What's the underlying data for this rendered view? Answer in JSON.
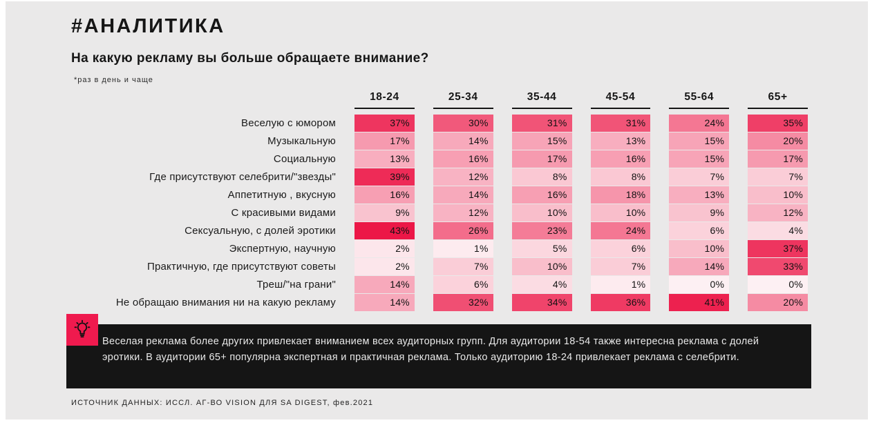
{
  "page": {
    "hashtag_title": "#АНАЛИТИКА",
    "question": "На какую рекламу вы больше обращаете внимание?",
    "note": "*раз в день и чаще",
    "insight": "Веселая реклама более других привлекает вниманием всех аудиторных групп.  Для аудитории 18-54 также интересна реклама с долей эротики. В аудитории 65+ популярна экспертная и практичная реклама. Только аудиторию 18-24 привлекает реклама с селебрити.",
    "source": "ИСТОЧНИК ДАННЫХ: ИССЛ. АГ-ВО VISION ДЛЯ SA DIGEST, фев.2021"
  },
  "colors": {
    "background": "#eae9e9",
    "accent_red": "#ef1a4e",
    "heat_low": "#fdf0f3",
    "heat_high": "#ec1747",
    "insight_bg": "#151515",
    "title_text": "#161616"
  },
  "chart_data": {
    "type": "heatmap",
    "title": "На какую рекламу вы больше обращаете внимание?",
    "subtitle_note": "*раз в день и чаще",
    "columns": [
      "18-24",
      "25-34",
      "35-44",
      "45-54",
      "55-64",
      "65+"
    ],
    "rows": [
      {
        "label": "Веселую с юмором",
        "values": [
          37,
          30,
          31,
          31,
          24,
          35
        ]
      },
      {
        "label": "Музыкальную",
        "values": [
          17,
          14,
          15,
          13,
          15,
          20
        ]
      },
      {
        "label": "Социальную",
        "values": [
          13,
          16,
          17,
          16,
          15,
          17
        ]
      },
      {
        "label": "Где присутствуют селебрити/\"звезды\"",
        "values": [
          39,
          12,
          8,
          8,
          7,
          7
        ]
      },
      {
        "label": "Аппетитную , вкусную",
        "values": [
          16,
          14,
          16,
          18,
          13,
          10
        ]
      },
      {
        "label": "С красивыми видами",
        "values": [
          9,
          12,
          10,
          10,
          9,
          12
        ]
      },
      {
        "label": "Сексуальную, с долей эротики",
        "values": [
          43,
          26,
          23,
          24,
          6,
          4
        ]
      },
      {
        "label": "Экспертную, научную",
        "values": [
          2,
          1,
          5,
          6,
          10,
          37
        ]
      },
      {
        "label": "Практичную, где присутствуют советы",
        "values": [
          2,
          7,
          10,
          7,
          14,
          33
        ]
      },
      {
        "label": "Треш/\"на грани\"",
        "values": [
          14,
          6,
          4,
          1,
          0,
          0
        ]
      },
      {
        "label": "Не обращаю внимания ни на какую рекламу",
        "values": [
          14,
          32,
          34,
          36,
          41,
          20
        ]
      }
    ],
    "value_suffix": "%",
    "value_range": [
      0,
      43
    ],
    "legend": "color intensity encodes value, light pink = low, crimson = high"
  }
}
